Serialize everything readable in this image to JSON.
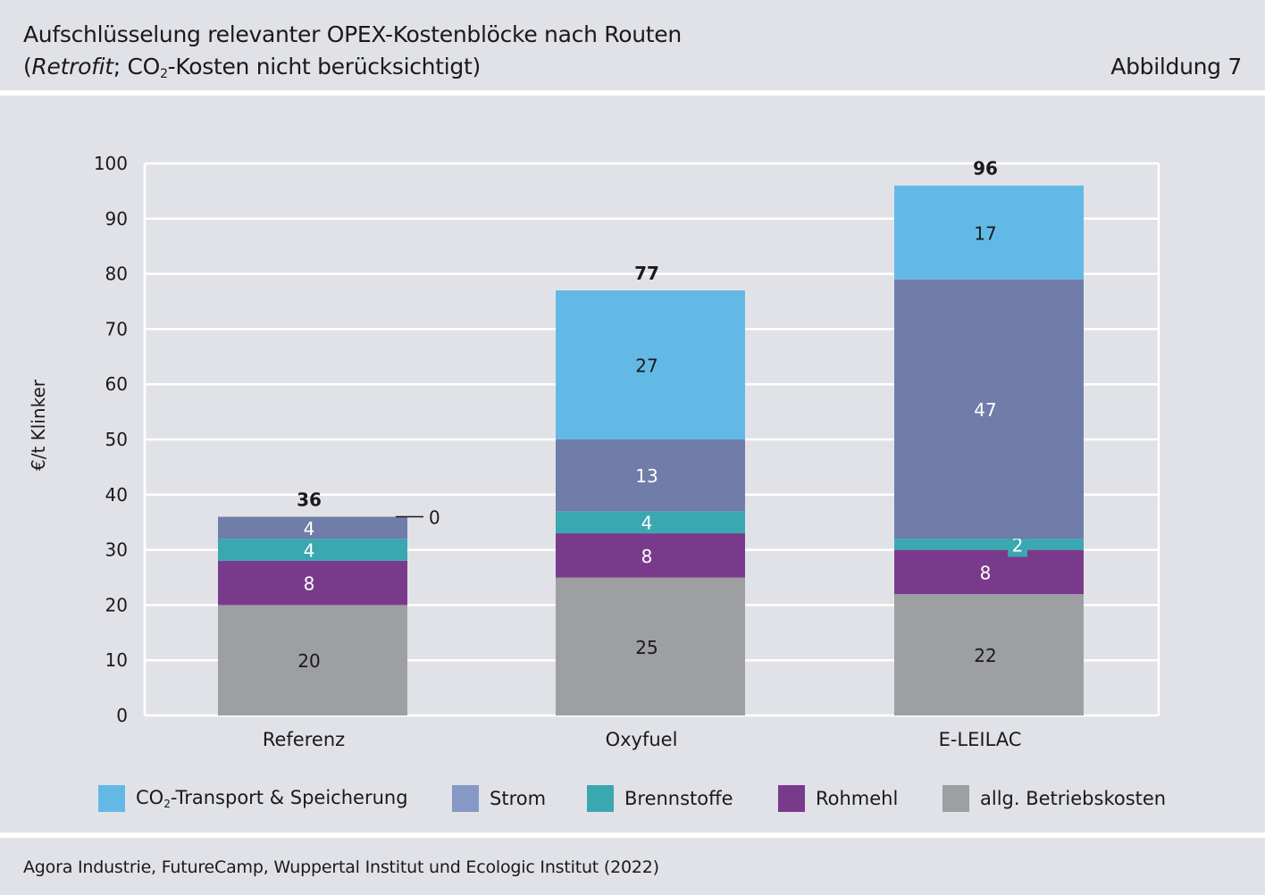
{
  "header": {
    "title_line1": "Aufschlüsselung relevanter OPEX-Kostenblöcke nach Routen",
    "title_line2_open": "(",
    "title_line2_italic": "Retrofit",
    "title_line2_mid": "; CO",
    "title_line2_sub": "2",
    "title_line2_rest": "-Kosten nicht berücksichtigt)",
    "figure_label": "Abbildung 7"
  },
  "footer": {
    "source": "Agora Industrie, FutureCamp, Wuppertal Institut und Ecologic Institut (2022)"
  },
  "legend": [
    {
      "label_main": "CO",
      "label_sub": "2",
      "label_rest": "-Transport & Speicherung",
      "color": "#63b9e6"
    },
    {
      "label_main": "Strom",
      "label_sub": "",
      "label_rest": "",
      "color": "#8698c6"
    },
    {
      "label_main": "Brennstoffe",
      "label_sub": "",
      "label_rest": "",
      "color": "#3aa8b0"
    },
    {
      "label_main": "Rohmehl",
      "label_sub": "",
      "label_rest": "",
      "color": "#7a3a8c"
    },
    {
      "label_main": "allg. Betriebskosten",
      "label_sub": "",
      "label_rest": "",
      "color": "#9d9fa3"
    }
  ],
  "chart_data": {
    "type": "bar",
    "stacked": true,
    "ylabel": "€/t Klinker",
    "ylim": [
      0,
      100
    ],
    "yticks": [
      0,
      10,
      20,
      30,
      40,
      50,
      60,
      70,
      80,
      90,
      100
    ],
    "grid": true,
    "legend_position": "bottom",
    "categories": [
      "Referenz",
      "Oxyfuel",
      "E-LEILAC"
    ],
    "totals": [
      36,
      77,
      96
    ],
    "series": [
      {
        "name": "allg. Betriebskosten",
        "values": [
          20,
          25,
          22
        ],
        "color": "#9d9fa3",
        "label_color": "#1a1a1a"
      },
      {
        "name": "Rohmehl",
        "values": [
          8,
          8,
          8
        ],
        "color": "#7a3a8c",
        "label_color": "#ffffff"
      },
      {
        "name": "Brennstoffe",
        "values": [
          4,
          4,
          2
        ],
        "color": "#3aa8b0",
        "label_color": "#ffffff"
      },
      {
        "name": "Strom",
        "values": [
          4,
          13,
          47
        ],
        "color": "#6f7da8",
        "label_color": "#ffffff"
      },
      {
        "name": "CO2-Transport & Speicherung",
        "values": [
          0,
          27,
          17
        ],
        "color": "#63b9e6",
        "label_color": "#1a1a1a"
      }
    ]
  }
}
